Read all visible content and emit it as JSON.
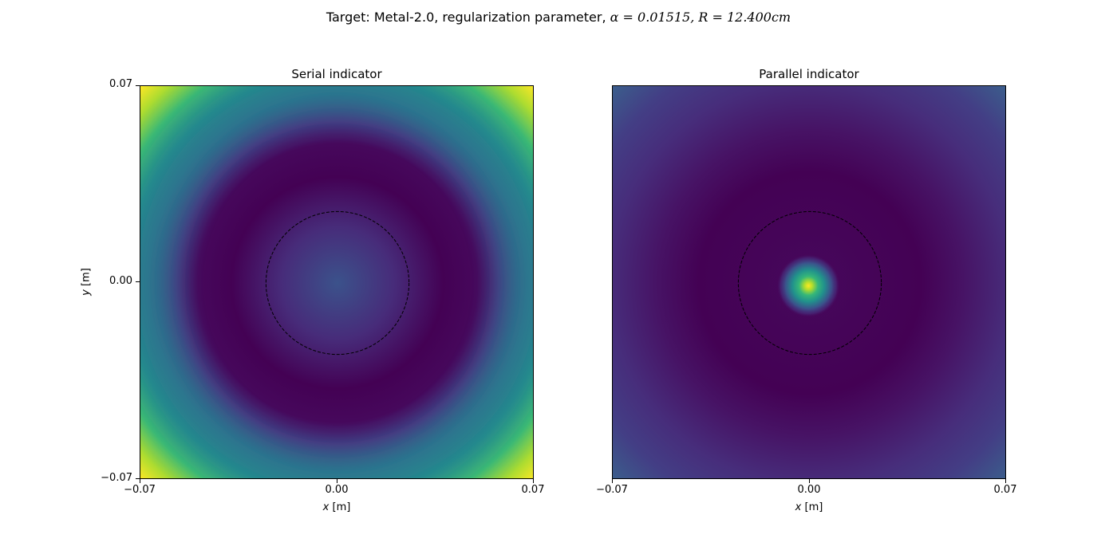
{
  "figure": {
    "suptitle_prefix": "Target: Metal-2.0, regularization parameter, ",
    "suptitle_math": "α = 0.01515, R = 12.400cm"
  },
  "chart_data": [
    {
      "type": "heatmap",
      "title": "Serial indicator",
      "xlabel_var": "x",
      "xlabel_unit": " [m]",
      "ylabel_var": "y",
      "ylabel_unit": " [m]",
      "xlim": [
        -0.07,
        0.07
      ],
      "ylim": [
        -0.07,
        0.07
      ],
      "xticks": [
        "−0.07",
        "0.00",
        "0.07"
      ],
      "yticks": [
        "−0.07",
        "0.00",
        "0.07"
      ],
      "colormap": "viridis",
      "circle": {
        "center": [
          0.0,
          0.0
        ],
        "radius": 0.0254,
        "style": "dashed",
        "color": "#000000"
      }
    },
    {
      "type": "heatmap",
      "title": "Parallel indicator",
      "xlabel_var": "x",
      "xlabel_unit": " [m]",
      "xlim": [
        -0.07,
        0.07
      ],
      "ylim": [
        -0.07,
        0.07
      ],
      "xticks": [
        "−0.07",
        "0.00",
        "0.07"
      ],
      "colormap": "viridis",
      "peak": {
        "x": -0.0005,
        "y": -0.001
      },
      "circle": {
        "center": [
          0.0,
          0.0
        ],
        "radius": 0.0254,
        "style": "dashed",
        "color": "#000000"
      }
    }
  ]
}
